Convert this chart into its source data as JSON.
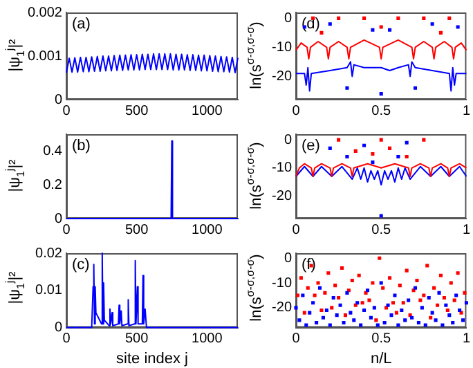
{
  "chart_data": [
    {
      "type": "line",
      "ylabel": "|ψ$_{1}$$^{j}$|²",
      "annotations": [
        "(a)"
      ],
      "xlim": [
        0,
        1220
      ],
      "xticks": [
        0,
        500,
        1000
      ],
      "ylim": [
        0,
        0.002
      ],
      "yticks": [
        0,
        0.001,
        0.002
      ],
      "series": [
        {
          "color": "#0000ff",
          "x": [
            0,
            20,
            40,
            60,
            80,
            100,
            120,
            140,
            160,
            180,
            200,
            220,
            240,
            260,
            280,
            300,
            320,
            340,
            360,
            380,
            400,
            420,
            440,
            460,
            480,
            500,
            520,
            540,
            560,
            580,
            600,
            620,
            640,
            660,
            680,
            700,
            720,
            740,
            760,
            780,
            800,
            820,
            840,
            860,
            880,
            900,
            920,
            940,
            960,
            980,
            1000,
            1020,
            1040,
            1060,
            1080,
            1100,
            1120,
            1140,
            1160,
            1180,
            1200,
            1220
          ],
          "values": [
            0.00062,
            0.00095,
            0.00063,
            0.00096,
            0.00063,
            0.00097,
            0.00064,
            0.00097,
            0.00064,
            0.00098,
            0.00065,
            0.00099,
            0.00065,
            0.001,
            0.00066,
            0.001,
            0.00066,
            0.00101,
            0.00067,
            0.00102,
            0.00067,
            0.00102,
            0.00068,
            0.00103,
            0.00068,
            0.00103,
            0.00068,
            0.00104,
            0.00069,
            0.00104,
            0.00069,
            0.00105,
            0.00069,
            0.00105,
            0.00069,
            0.00105,
            0.00069,
            0.00105,
            0.00068,
            0.00104,
            0.00068,
            0.00104,
            0.00068,
            0.00103,
            0.00067,
            0.00103,
            0.00067,
            0.00102,
            0.00066,
            0.00102,
            0.00066,
            0.00101,
            0.00065,
            0.001,
            0.00064,
            0.00099,
            0.00064,
            0.00098,
            0.00063,
            0.00097,
            0.00062,
            0.00096
          ]
        }
      ]
    },
    {
      "type": "line",
      "ylabel": "|ψ$_{1}$$^{j}$|²",
      "annotations": [
        "(b)"
      ],
      "xlim": [
        0,
        1220
      ],
      "xticks": [
        0,
        500,
        1000
      ],
      "ylim": [
        0,
        0.5
      ],
      "yticks": [
        0,
        0.2,
        0.4
      ],
      "series": [
        {
          "color": "#0000ff",
          "x": [
            0,
            745,
            750,
            755,
            1220
          ],
          "values": [
            0,
            0,
            0.46,
            0,
            0
          ]
        }
      ]
    },
    {
      "type": "line",
      "ylabel": "|ψ$_{1}$$^{j}$|²",
      "xlabel": "site index j",
      "annotations": [
        "(c)"
      ],
      "xlim": [
        0,
        1220
      ],
      "xticks": [
        0,
        500,
        1000
      ],
      "ylim": [
        0,
        0.02
      ],
      "yticks": [
        0,
        0.01,
        0.02
      ],
      "series": [
        {
          "color": "#0000ff",
          "x": [
            0,
            180,
            190,
            195,
            200,
            205,
            210,
            250,
            255,
            260,
            265,
            270,
            305,
            310,
            315,
            325,
            330,
            370,
            375,
            380,
            390,
            395,
            435,
            440,
            445,
            485,
            490,
            495,
            505,
            510,
            540,
            545,
            550,
            560,
            570,
            1220
          ],
          "values": [
            0,
            0,
            0.011,
            0.017,
            0.001,
            0.011,
            0.004,
            0.001,
            0.02,
            0.001,
            0.012,
            0.002,
            0.0005,
            0.005,
            0.001,
            0.004,
            0.0005,
            0.001,
            0.006,
            0.001,
            0.0045,
            0.0005,
            0.001,
            0.0075,
            0.0005,
            0.001,
            0.018,
            0.001,
            0.011,
            0.001,
            0.001,
            0.014,
            0.001,
            0.005,
            0,
            0
          ]
        }
      ]
    },
    {
      "type": "line",
      "ylabel": "ln(s$^{σ-σ,σ-σ}$)",
      "annotations": [
        "(d)"
      ],
      "xlim": [
        0,
        1
      ],
      "xticks": [
        0,
        0.5,
        1
      ],
      "ylim": [
        -28,
        2
      ],
      "yticks": [
        -20,
        -10,
        0
      ],
      "series": [
        {
          "color": "#ff0000",
          "x": [
            0,
            0.03,
            0.065,
            0.075,
            0.085,
            0.13,
            0.18,
            0.19,
            0.2,
            0.25,
            0.3,
            0.31,
            0.32,
            0.4,
            0.49,
            0.5,
            0.51,
            0.6,
            0.68,
            0.69,
            0.7,
            0.75,
            0.8,
            0.81,
            0.82,
            0.87,
            0.915,
            0.925,
            0.935,
            0.97,
            1
          ],
          "values": [
            -11,
            -8.5,
            -10,
            -14,
            -10,
            -8,
            -10,
            -14,
            -10,
            -8,
            -10,
            -14,
            -10,
            -7.5,
            -10,
            -14,
            -10,
            -7.5,
            -10,
            -14,
            -10,
            -8,
            -10,
            -14,
            -10,
            -8,
            -10,
            -14,
            -10,
            -8.5,
            -11
          ]
        },
        {
          "color": "#0000ff",
          "x": [
            0,
            0.05,
            0.06,
            0.07,
            0.08,
            0.09,
            0.2,
            0.3,
            0.32,
            0.33,
            0.34,
            0.4,
            0.5,
            0.55,
            0.6,
            0.66,
            0.67,
            0.68,
            0.7,
            0.8,
            0.9,
            0.91,
            0.92,
            0.93,
            0.94,
            1
          ],
          "values": [
            -19,
            -19,
            -23,
            -17,
            -25,
            -19,
            -18,
            -17,
            -15,
            -20,
            -16,
            -17,
            -17,
            -18,
            -17,
            -16,
            -20,
            -15,
            -17,
            -18,
            -19,
            -25,
            -17,
            -23,
            -19,
            -19
          ]
        },
        {
          "type": "scatter",
          "marker": "square",
          "color": "#ff0000",
          "x": [
            0.1,
            0.15,
            0.25,
            0.4,
            0.5,
            0.6,
            0.75,
            0.85,
            0.9
          ],
          "values": [
            0,
            -5,
            0,
            0,
            -3,
            0,
            0,
            -5,
            0
          ]
        },
        {
          "type": "scatter",
          "marker": "square",
          "color": "#0000ff",
          "x": [
            0.05,
            0.2,
            0.3,
            0.45,
            0.5,
            0.55,
            0.7,
            0.8,
            0.95
          ],
          "values": [
            -3,
            -2,
            -24,
            -4,
            -26,
            -4,
            -24,
            -2,
            -3
          ]
        }
      ]
    },
    {
      "type": "line",
      "ylabel": "ln(s$^{σ-σ,σ-σ}$)",
      "annotations": [
        "(e)"
      ],
      "xlim": [
        0,
        1
      ],
      "xticks": [
        0,
        0.5,
        1
      ],
      "ylim": [
        -28,
        2
      ],
      "yticks": [
        -20,
        -10,
        0
      ],
      "series": [
        {
          "color": "#ff0000",
          "x": [
            0,
            0.02,
            0.05,
            0.09,
            0.1,
            0.11,
            0.15,
            0.2,
            0.21,
            0.22,
            0.27,
            0.32,
            0.33,
            0.34,
            0.42,
            0.5,
            0.58,
            0.66,
            0.67,
            0.68,
            0.73,
            0.78,
            0.79,
            0.8,
            0.85,
            0.89,
            0.9,
            0.91,
            0.96,
            1
          ],
          "values": [
            -13,
            -10,
            -8.5,
            -10,
            -13,
            -10,
            -8.5,
            -10,
            -13,
            -10,
            -8.5,
            -10,
            -13,
            -10,
            -8.5,
            -10,
            -8.5,
            -10,
            -13,
            -10,
            -8.5,
            -10,
            -13,
            -10,
            -8.5,
            -10,
            -13,
            -10,
            -8.5,
            -10
          ]
        },
        {
          "color": "#0000ff",
          "x": [
            0,
            0.05,
            0.1,
            0.15,
            0.21,
            0.27,
            0.33,
            0.36,
            0.38,
            0.4,
            0.42,
            0.44,
            0.46,
            0.48,
            0.5,
            0.52,
            0.54,
            0.56,
            0.58,
            0.6,
            0.62,
            0.64,
            0.67,
            0.73,
            0.79,
            0.85,
            0.9,
            0.96,
            1
          ],
          "values": [
            -13,
            -9.5,
            -13,
            -9.5,
            -13,
            -9.5,
            -14,
            -10,
            -14,
            -10,
            -15,
            -11,
            -14,
            -11,
            -16,
            -11,
            -14,
            -11,
            -15,
            -10,
            -14,
            -10,
            -14,
            -9.5,
            -13,
            -9.5,
            -13,
            -9.5,
            -13
          ]
        },
        {
          "type": "scatter",
          "marker": "square",
          "color": "#ff0000",
          "x": [
            0.25,
            0.35,
            0.45,
            0.5,
            0.55,
            0.65,
            0.75
          ],
          "values": [
            0,
            -4,
            -5,
            0,
            -3,
            -6,
            0
          ]
        },
        {
          "type": "scatter",
          "marker": "square",
          "color": "#0000ff",
          "x": [
            0.2,
            0.3,
            0.4,
            0.45,
            0.5,
            0.6,
            0.65
          ],
          "values": [
            -3,
            -6,
            -2,
            -8,
            -27,
            -6,
            -1
          ]
        }
      ]
    },
    {
      "type": "scatter",
      "ylabel": "ln(s$^{σ-σ,σ-σ}$)",
      "xlabel": "n/L",
      "annotations": [
        "(f)"
      ],
      "xlim": [
        0,
        1
      ],
      "xticks": [
        0,
        0.5,
        1
      ],
      "ylim": [
        -28,
        2
      ],
      "yticks": [
        -20,
        -10,
        0
      ],
      "marker": "square",
      "series": [
        {
          "color": "#0000ff",
          "x": [
            0,
            0.02,
            0.04,
            0.06,
            0.08,
            0.1,
            0.12,
            0.14,
            0.16,
            0.18,
            0.2,
            0.22,
            0.24,
            0.26,
            0.28,
            0.3,
            0.32,
            0.34,
            0.36,
            0.38,
            0.4,
            0.42,
            0.44,
            0.46,
            0.48,
            0.5,
            0.52,
            0.54,
            0.56,
            0.58,
            0.6,
            0.62,
            0.64,
            0.66,
            0.68,
            0.7,
            0.72,
            0.74,
            0.76,
            0.78,
            0.8,
            0.82,
            0.84,
            0.86,
            0.88,
            0.9,
            0.92,
            0.94,
            0.96,
            0.98,
            1
          ],
          "values": [
            -20,
            -25,
            -15,
            -27,
            -22,
            -18,
            -26,
            -12,
            -24,
            -21,
            -27,
            -16,
            -23,
            -19,
            -26,
            -14,
            -22,
            -25,
            -18,
            -27,
            -21,
            -13,
            -24,
            -20,
            -27,
            -10,
            -26,
            -19,
            -23,
            -15,
            -27,
            -21,
            -25,
            -17,
            -24,
            -12,
            -26,
            -20,
            -27,
            -16,
            -22,
            -25,
            -14,
            -27,
            -19,
            -23,
            -26,
            -15,
            -21,
            -25,
            -18
          ]
        },
        {
          "color": "#ff0000",
          "x": [
            0.01,
            0.03,
            0.05,
            0.07,
            0.09,
            0.11,
            0.13,
            0.15,
            0.17,
            0.19,
            0.21,
            0.23,
            0.25,
            0.27,
            0.29,
            0.31,
            0.33,
            0.35,
            0.37,
            0.39,
            0.41,
            0.43,
            0.45,
            0.47,
            0.49,
            0.51,
            0.53,
            0.55,
            0.57,
            0.59,
            0.61,
            0.63,
            0.65,
            0.67,
            0.69,
            0.71,
            0.73,
            0.75,
            0.77,
            0.79,
            0.81,
            0.83,
            0.85,
            0.87,
            0.89,
            0.91,
            0.93,
            0.95,
            0.97,
            0.99
          ],
          "values": [
            -15,
            -8,
            -22,
            -12,
            -3,
            -15,
            -10,
            -21,
            -14,
            -6,
            -20,
            -11,
            -16,
            -4,
            -23,
            -13,
            -9,
            -19,
            -7,
            -18,
            -14,
            -17,
            -10,
            -25,
            0,
            -12,
            -20,
            -8,
            -18,
            -22,
            -11,
            -18,
            -5,
            -23,
            -13,
            -9,
            -17,
            -15,
            -3,
            -24,
            -12,
            -19,
            -7,
            -16,
            -21,
            -10,
            -17,
            -6,
            -22,
            -14
          ]
        }
      ]
    }
  ]
}
